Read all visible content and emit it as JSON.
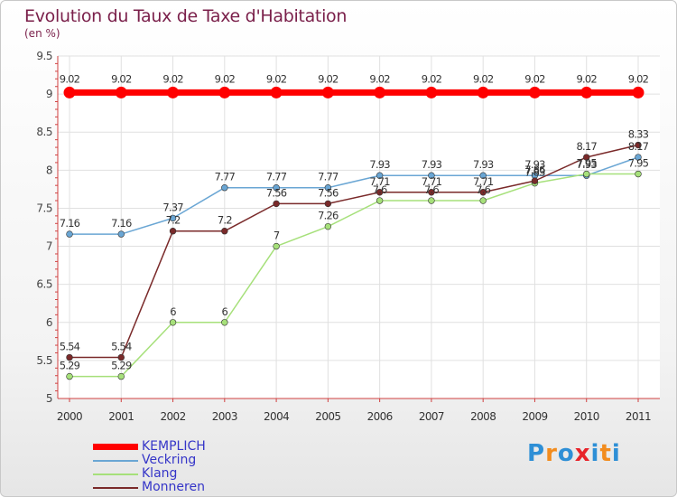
{
  "chart_data": {
    "type": "line",
    "title": "Evolution du Taux de Taxe d'Habitation",
    "subtitle": "(en %)",
    "x": [
      "2000",
      "2001",
      "2002",
      "2003",
      "2004",
      "2005",
      "2006",
      "2007",
      "2008",
      "2009",
      "2010",
      "2011"
    ],
    "ylim": [
      5,
      9.5
    ],
    "yticks": [
      "5",
      "5.5",
      "6",
      "6.5",
      "7",
      "7.5",
      "8",
      "8.5",
      "9",
      "9.5"
    ],
    "series": [
      {
        "name": "KEMPLICH",
        "color": "#ff0000",
        "values": [
          9.02,
          9.02,
          9.02,
          9.02,
          9.02,
          9.02,
          9.02,
          9.02,
          9.02,
          9.02,
          9.02,
          9.02
        ],
        "labels": [
          "9.02",
          "9.02",
          "9.02",
          "9.02",
          "9.02",
          "9.02",
          "9.02",
          "9.02",
          "9.02",
          "9.02",
          "9.02",
          "9.02"
        ]
      },
      {
        "name": "Veckring",
        "color": "#6aa6d4",
        "values": [
          7.16,
          7.16,
          7.37,
          7.77,
          7.77,
          7.77,
          7.93,
          7.93,
          7.93,
          7.93,
          7.93,
          8.17
        ],
        "labels": [
          "7.16",
          "7.16",
          "7.37",
          "7.77",
          "7.77",
          "7.77",
          "7.93",
          "7.93",
          "7.93",
          "7.93",
          "7.93",
          "8.17"
        ]
      },
      {
        "name": "Klang",
        "color": "#a6e07a",
        "values": [
          5.29,
          5.29,
          6,
          6,
          7,
          7.26,
          7.6,
          7.6,
          7.6,
          7.83,
          7.95,
          7.95
        ],
        "labels": [
          "5.29",
          "5.29",
          "6",
          "6",
          "7",
          "7.26",
          "7.6",
          "7.6",
          "7.6",
          "7.83",
          "7.95",
          "7.95"
        ]
      },
      {
        "name": "Monneren",
        "color": "#7a2a2a",
        "values": [
          5.54,
          5.54,
          7.2,
          7.2,
          7.56,
          7.56,
          7.71,
          7.71,
          7.71,
          7.86,
          8.17,
          8.33
        ],
        "labels": [
          "5.54",
          "5.54",
          "7.2",
          "7.2",
          "7.56",
          "7.56",
          "7.71",
          "7.71",
          "7.71",
          "7.86",
          "8.17",
          "8.33"
        ]
      }
    ]
  },
  "logo": {
    "text": "Proxiti",
    "colors": [
      "#2e8fd6",
      "#f28c1e",
      "#2e8fd6",
      "#e8232a",
      "#2e8fd6",
      "#f28c1e",
      "#2e8fd6"
    ]
  }
}
